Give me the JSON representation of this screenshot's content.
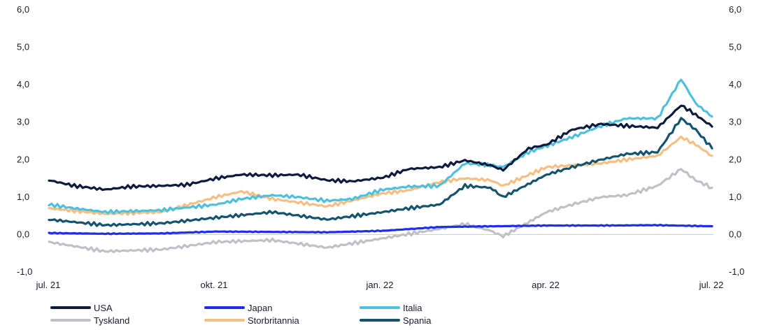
{
  "chart_data": {
    "type": "line",
    "title": "",
    "xlabel": "",
    "ylabel": "",
    "ylim": [
      -1.0,
      6.0
    ],
    "yticks": [
      "-1,0",
      "0,0",
      "1,0",
      "2,0",
      "3,0",
      "4,0",
      "5,0",
      "6,0"
    ],
    "xlim": [
      "2021-07-01",
      "2022-07-01"
    ],
    "xticks": [
      "jul. 21",
      "okt. 21",
      "jan. 22",
      "apr. 22",
      "jul. 22"
    ],
    "grid": false,
    "legend_position": "bottom",
    "series": [
      {
        "name": "USA",
        "color": "#0d1b3d",
        "values": [
          [
            "2021-07-01",
            1.45
          ],
          [
            "2021-07-15",
            1.3
          ],
          [
            "2021-08-01",
            1.2
          ],
          [
            "2021-08-15",
            1.28
          ],
          [
            "2021-09-01",
            1.3
          ],
          [
            "2021-09-15",
            1.33
          ],
          [
            "2021-10-01",
            1.5
          ],
          [
            "2021-10-15",
            1.6
          ],
          [
            "2021-11-01",
            1.58
          ],
          [
            "2021-11-15",
            1.6
          ],
          [
            "2021-12-01",
            1.45
          ],
          [
            "2021-12-15",
            1.42
          ],
          [
            "2022-01-01",
            1.52
          ],
          [
            "2022-01-15",
            1.75
          ],
          [
            "2022-02-01",
            1.8
          ],
          [
            "2022-02-15",
            1.98
          ],
          [
            "2022-03-01",
            1.85
          ],
          [
            "2022-03-08",
            1.72
          ],
          [
            "2022-03-22",
            2.3
          ],
          [
            "2022-04-01",
            2.4
          ],
          [
            "2022-04-15",
            2.8
          ],
          [
            "2022-05-01",
            2.95
          ],
          [
            "2022-05-15",
            2.9
          ],
          [
            "2022-06-01",
            2.85
          ],
          [
            "2022-06-14",
            3.45
          ],
          [
            "2022-06-22",
            3.2
          ],
          [
            "2022-07-01",
            2.88
          ]
        ]
      },
      {
        "name": "Japan",
        "color": "#1f2ee8",
        "values": [
          [
            "2021-07-01",
            0.04
          ],
          [
            "2021-08-01",
            0.02
          ],
          [
            "2021-09-01",
            0.03
          ],
          [
            "2021-10-01",
            0.08
          ],
          [
            "2021-11-01",
            0.07
          ],
          [
            "2021-12-01",
            0.06
          ],
          [
            "2022-01-01",
            0.1
          ],
          [
            "2022-02-01",
            0.2
          ],
          [
            "2022-03-01",
            0.22
          ],
          [
            "2022-04-01",
            0.24
          ],
          [
            "2022-05-01",
            0.24
          ],
          [
            "2022-06-01",
            0.25
          ],
          [
            "2022-07-01",
            0.22
          ]
        ]
      },
      {
        "name": "Italia",
        "color": "#4fc0dc",
        "values": [
          [
            "2021-07-01",
            0.8
          ],
          [
            "2021-07-15",
            0.7
          ],
          [
            "2021-08-01",
            0.6
          ],
          [
            "2021-09-01",
            0.65
          ],
          [
            "2021-10-01",
            0.8
          ],
          [
            "2021-10-15",
            0.95
          ],
          [
            "2021-11-01",
            1.05
          ],
          [
            "2021-11-15",
            1.0
          ],
          [
            "2021-12-01",
            0.9
          ],
          [
            "2021-12-15",
            0.95
          ],
          [
            "2022-01-01",
            1.2
          ],
          [
            "2022-01-15",
            1.28
          ],
          [
            "2022-02-01",
            1.3
          ],
          [
            "2022-02-15",
            1.9
          ],
          [
            "2022-03-01",
            1.85
          ],
          [
            "2022-03-08",
            1.8
          ],
          [
            "2022-03-22",
            2.2
          ],
          [
            "2022-04-15",
            2.6
          ],
          [
            "2022-05-01",
            2.9
          ],
          [
            "2022-05-15",
            3.1
          ],
          [
            "2022-06-01",
            3.1
          ],
          [
            "2022-06-14",
            4.15
          ],
          [
            "2022-06-22",
            3.5
          ],
          [
            "2022-07-01",
            3.15
          ]
        ]
      },
      {
        "name": "Tyskland",
        "color": "#bfc1c8",
        "values": [
          [
            "2021-07-01",
            -0.2
          ],
          [
            "2021-08-01",
            -0.45
          ],
          [
            "2021-09-01",
            -0.4
          ],
          [
            "2021-10-01",
            -0.2
          ],
          [
            "2021-11-01",
            -0.15
          ],
          [
            "2021-12-01",
            -0.35
          ],
          [
            "2022-01-01",
            -0.1
          ],
          [
            "2022-02-01",
            0.15
          ],
          [
            "2022-02-15",
            0.28
          ],
          [
            "2022-03-01",
            0.1
          ],
          [
            "2022-03-08",
            -0.05
          ],
          [
            "2022-04-01",
            0.6
          ],
          [
            "2022-04-15",
            0.8
          ],
          [
            "2022-05-01",
            1.0
          ],
          [
            "2022-05-15",
            1.05
          ],
          [
            "2022-06-01",
            1.3
          ],
          [
            "2022-06-14",
            1.75
          ],
          [
            "2022-06-22",
            1.45
          ],
          [
            "2022-07-01",
            1.25
          ]
        ]
      },
      {
        "name": "Storbritannia",
        "color": "#f5bf84",
        "values": [
          [
            "2021-07-01",
            0.7
          ],
          [
            "2021-08-01",
            0.55
          ],
          [
            "2021-09-01",
            0.6
          ],
          [
            "2021-10-01",
            1.0
          ],
          [
            "2021-10-15",
            1.15
          ],
          [
            "2021-11-01",
            0.95
          ],
          [
            "2021-12-01",
            0.75
          ],
          [
            "2022-01-01",
            1.1
          ],
          [
            "2022-01-15",
            1.18
          ],
          [
            "2022-02-01",
            1.4
          ],
          [
            "2022-02-15",
            1.5
          ],
          [
            "2022-03-01",
            1.45
          ],
          [
            "2022-03-08",
            1.3
          ],
          [
            "2022-04-01",
            1.8
          ],
          [
            "2022-05-01",
            1.9
          ],
          [
            "2022-05-15",
            2.0
          ],
          [
            "2022-06-01",
            2.1
          ],
          [
            "2022-06-14",
            2.6
          ],
          [
            "2022-06-22",
            2.4
          ],
          [
            "2022-07-01",
            2.1
          ]
        ]
      },
      {
        "name": "Spania",
        "color": "#14546e",
        "values": [
          [
            "2021-07-01",
            0.4
          ],
          [
            "2021-08-01",
            0.25
          ],
          [
            "2021-09-01",
            0.3
          ],
          [
            "2021-10-01",
            0.45
          ],
          [
            "2021-11-01",
            0.6
          ],
          [
            "2021-12-01",
            0.4
          ],
          [
            "2022-01-01",
            0.6
          ],
          [
            "2022-01-15",
            0.7
          ],
          [
            "2022-02-01",
            0.8
          ],
          [
            "2022-02-15",
            1.3
          ],
          [
            "2022-03-01",
            1.25
          ],
          [
            "2022-03-08",
            1.0
          ],
          [
            "2022-04-01",
            1.6
          ],
          [
            "2022-04-15",
            1.8
          ],
          [
            "2022-05-01",
            2.0
          ],
          [
            "2022-05-15",
            2.15
          ],
          [
            "2022-06-01",
            2.2
          ],
          [
            "2022-06-14",
            3.1
          ],
          [
            "2022-06-22",
            2.8
          ],
          [
            "2022-07-01",
            2.3
          ]
        ]
      }
    ]
  }
}
